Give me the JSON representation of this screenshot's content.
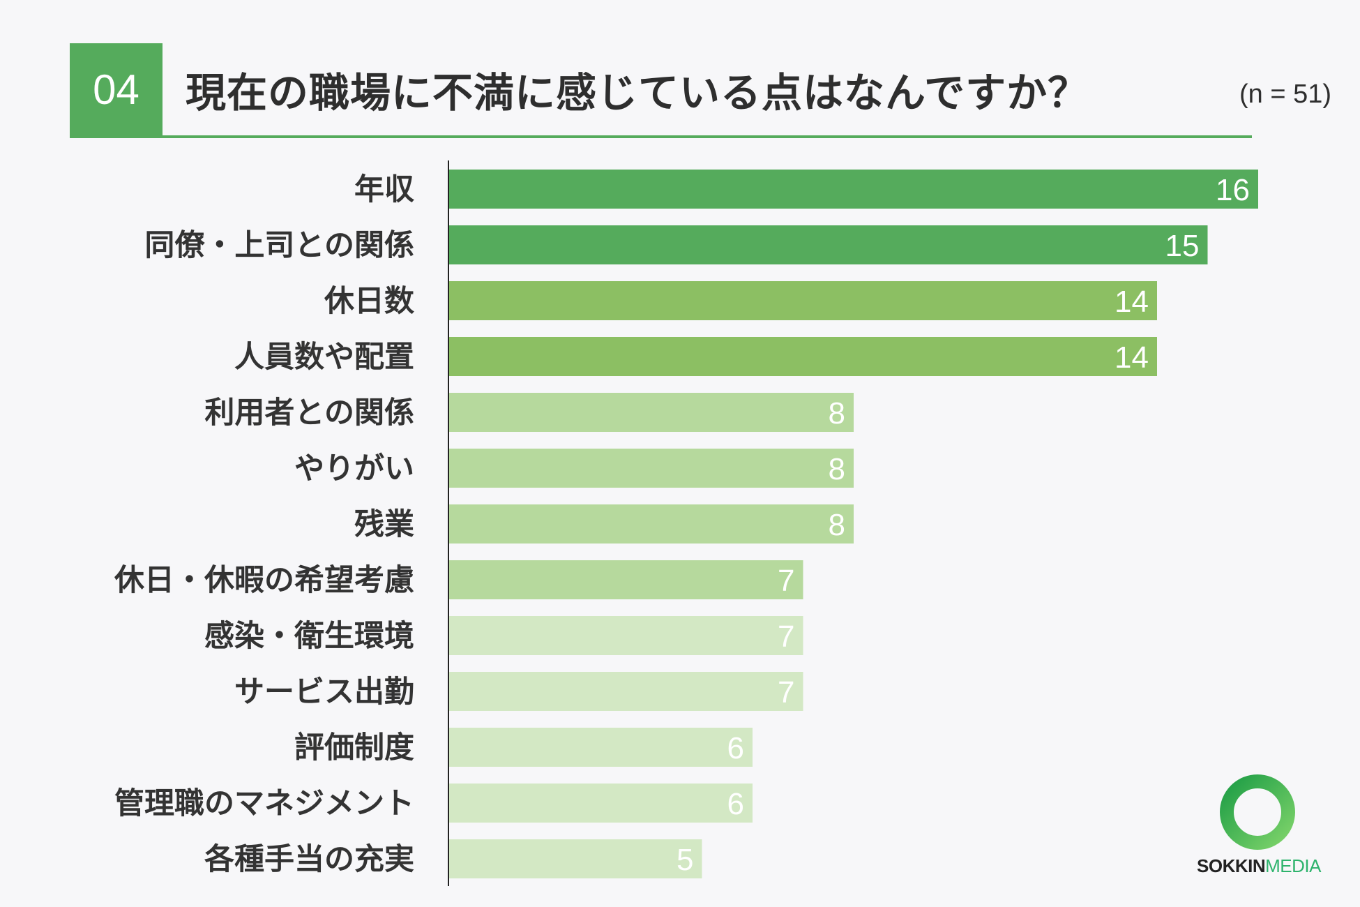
{
  "header": {
    "number": "04",
    "title": "現在の職場に不満に感じている点はなんですか？",
    "sample": "(n = 51)"
  },
  "chart_data": {
    "type": "bar",
    "orientation": "horizontal",
    "categories": [
      "年収",
      "同僚・上司との関係",
      "休日数",
      "人員数や配置",
      "利用者との関係",
      "やりがい",
      "残業",
      "休日・休暇の希望考慮",
      "感染・衛生環境",
      "サービス出勤",
      "評価制度",
      "管理職のマネジメント",
      "各種手当の充実"
    ],
    "values": [
      16,
      15,
      14,
      14,
      8,
      8,
      8,
      7,
      7,
      7,
      6,
      6,
      5
    ],
    "colors": [
      "#55ab5c",
      "#55ab5c",
      "#8cbf63",
      "#8cbf63",
      "#b6d99d",
      "#b6d99d",
      "#b6d99d",
      "#b6d99d",
      "#d3e8c4",
      "#d3e8c4",
      "#d3e8c4",
      "#d3e8c4",
      "#d3e8c4"
    ],
    "xlim": [
      0,
      16
    ],
    "grid": false,
    "legend": "none"
  },
  "logo": {
    "text_dark": "SOKKIN",
    "text_accent": "MEDIA",
    "ring_colors": [
      "#1f9e46",
      "#7dd36a"
    ]
  }
}
